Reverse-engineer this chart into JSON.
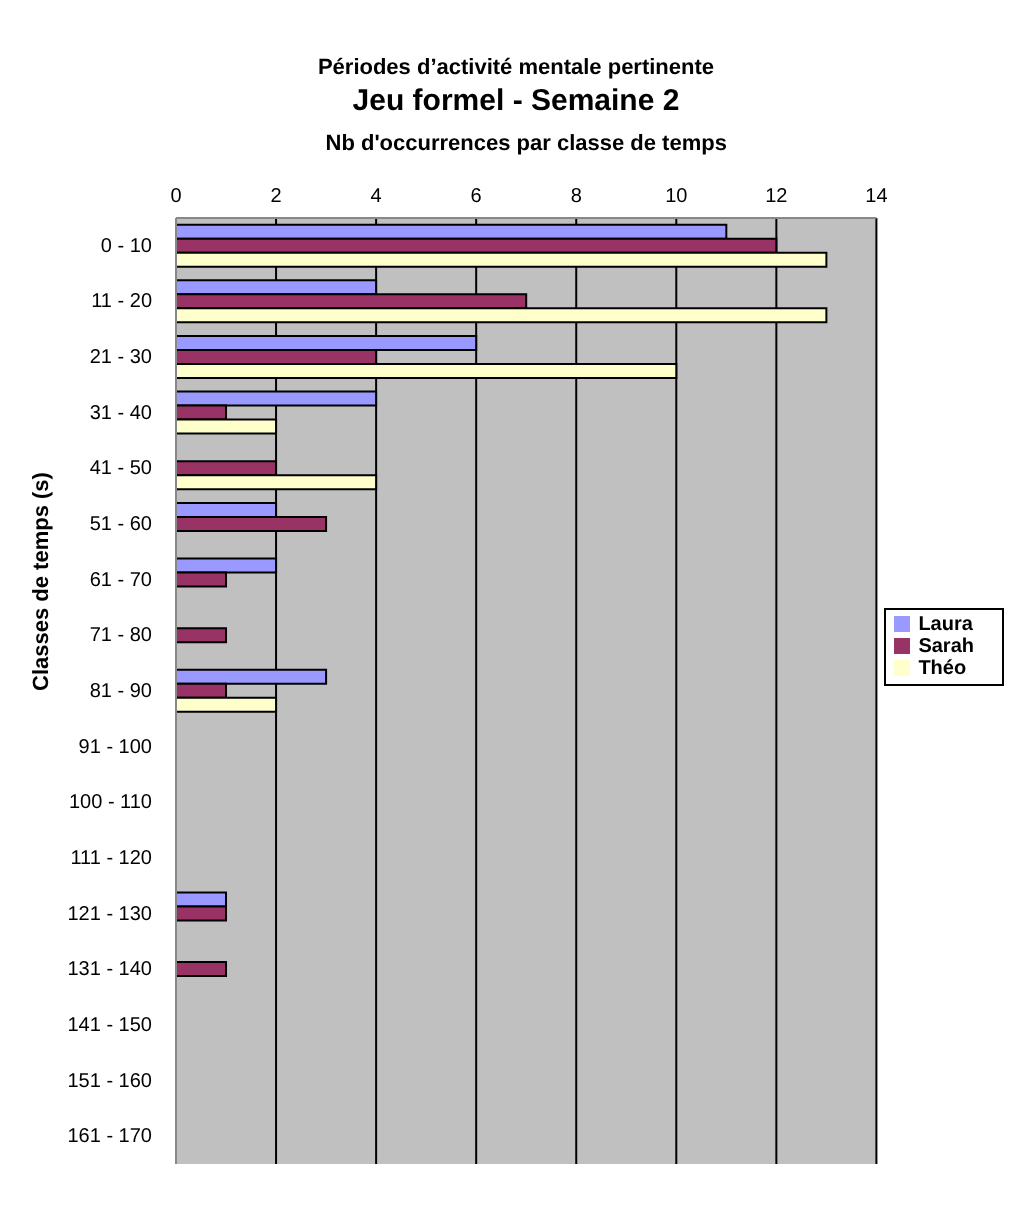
{
  "chart_data": {
    "type": "bar",
    "orientation": "horizontal",
    "title": "Périodes d’activité mentale pertinente",
    "subtitle": "Jeu formel - Semaine 2",
    "xlabel": "Nb d'occurrences par classe de temps",
    "ylabel": "Classes de temps (s)",
    "categories": [
      "0 - 10",
      "11 - 20",
      "21 - 30",
      "31 - 40",
      "41 - 50",
      "51 - 60",
      "61 - 70",
      "71 - 80",
      "81 - 90",
      "91 - 100",
      "100 - 110",
      "111 - 120",
      "121 - 130",
      "131 - 140",
      "141 - 150",
      "151 - 160",
      "161 - 170"
    ],
    "series": [
      {
        "name": "Laura",
        "color": "#9999ff",
        "values": [
          11,
          4,
          6,
          4,
          0,
          2,
          2,
          0,
          3,
          0,
          0,
          0,
          1,
          0,
          0,
          0,
          0
        ]
      },
      {
        "name": "Sarah",
        "color": "#993366",
        "values": [
          12,
          7,
          4,
          1,
          2,
          3,
          1,
          1,
          1,
          0,
          0,
          0,
          1,
          1,
          0,
          0,
          0
        ]
      },
      {
        "name": "Théo",
        "color": "#ffffcc",
        "values": [
          13,
          13,
          10,
          2,
          4,
          0,
          0,
          0,
          2,
          0,
          0,
          0,
          0,
          0,
          0,
          0,
          0
        ]
      }
    ],
    "xlim": [
      0,
      14
    ],
    "xticks": [
      0,
      2,
      4,
      6,
      8,
      10,
      12,
      14
    ],
    "grid": "x",
    "legend": "right"
  }
}
